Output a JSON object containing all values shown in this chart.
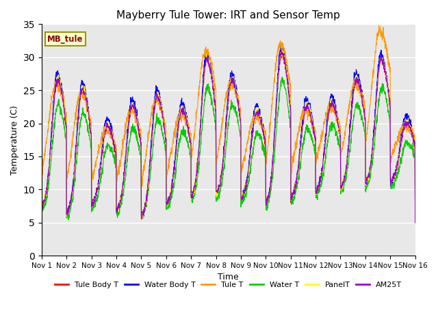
{
  "title": "Mayberry Tule Tower: IRT and Sensor Temp",
  "xlabel": "Time",
  "ylabel": "Temperature (C)",
  "ylim": [
    0,
    35
  ],
  "yticks": [
    0,
    5,
    10,
    15,
    20,
    25,
    30,
    35
  ],
  "x_labels": [
    "Nov 1",
    "Nov 2",
    "Nov 3",
    "Nov 4",
    "Nov 5",
    "Nov 6",
    "Nov 7",
    "Nov 8",
    "Nov 9",
    "Nov 10",
    "Nov 11",
    "Nov 12",
    "Nov 13",
    "Nov 14",
    "Nov 15",
    "Nov 16"
  ],
  "legend_label": "MB_tule",
  "series_colors": {
    "Tule Body T": "#ff0000",
    "Water Body T": "#0000ff",
    "Tule T": "#ff9900",
    "Water T": "#00cc00",
    "PanelT": "#ffff00",
    "AM25T": "#9900cc"
  },
  "series_names": [
    "Tule Body T",
    "Water Body T",
    "Tule T",
    "Water T",
    "PanelT",
    "AM25T"
  ],
  "background_color": "#e8e8e8",
  "n_days": 15,
  "pts_per_day": 144,
  "day_peaks": [
    26.5,
    25.0,
    19.5,
    22.5,
    24.0,
    22.0,
    29.5,
    26.5,
    21.5,
    30.5,
    22.5,
    23.0,
    26.5,
    29.5,
    20.0
  ],
  "day_mins": [
    7.0,
    6.0,
    7.5,
    6.5,
    5.5,
    7.5,
    8.5,
    9.0,
    8.5,
    7.5,
    8.5,
    9.5,
    10.0,
    10.5,
    11.0
  ]
}
